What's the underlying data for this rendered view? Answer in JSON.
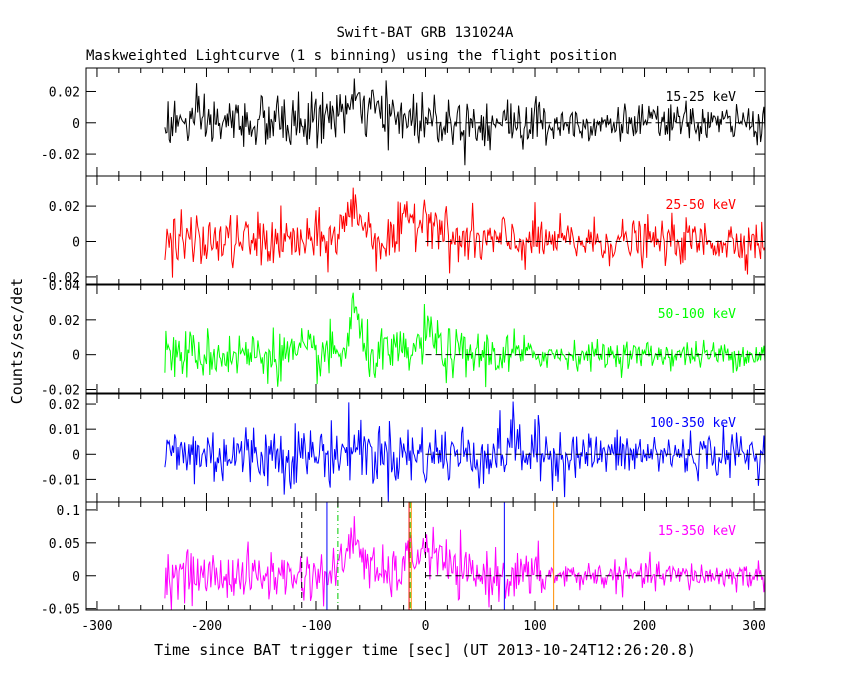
{
  "chart_data": {
    "type": "line",
    "title": "Swift-BAT GRB 131024A",
    "subtitle": "Maskweighted Lightcurve (1 s binning) using the flight position",
    "xlabel": "Time since BAT trigger time [sec] (UT 2013-10-24T12:26:20.8)",
    "ylabel": "Counts/sec/det",
    "xlim": [
      -310,
      310
    ],
    "x_ticks": [
      "-300",
      "-200",
      "-100",
      "0",
      "100",
      "200",
      "300"
    ],
    "x_tick_values": [
      -300,
      -200,
      -100,
      0,
      100,
      200,
      300
    ],
    "x_range_data": [
      -238,
      310
    ],
    "panels": [
      {
        "band": "15-25 keV",
        "color": "#000000",
        "ylim": [
          -0.034,
          0.035
        ],
        "y_ticks": [
          "0.02",
          "0",
          "-0.02"
        ],
        "y_tick_values": [
          0.02,
          0,
          -0.02
        ],
        "noise_sigma": 0.0085,
        "pulses": [
          [
            -65,
            0.01,
            18
          ],
          [
            -10,
            0.003,
            25
          ]
        ],
        "flat_after": 120,
        "flat_noise": 0.006
      },
      {
        "band": "25-50 keV",
        "color": "#ff0000",
        "ylim": [
          -0.024,
          0.037
        ],
        "y_ticks": [
          "0.02",
          "0",
          "-0.02"
        ],
        "y_tick_values": [
          0.02,
          0,
          -0.02
        ],
        "noise_sigma": 0.0075,
        "pulses": [
          [
            -65,
            0.018,
            9
          ],
          [
            -14,
            0.012,
            6
          ],
          [
            4,
            0.016,
            8
          ]
        ],
        "flat_after": 100,
        "flat_noise": 0.0062
      },
      {
        "band": "50-100 keV",
        "color": "#00ff00",
        "ylim": [
          -0.022,
          0.04
        ],
        "y_ticks": [
          "0.04",
          "0.02",
          "0",
          "-0.02"
        ],
        "y_tick_values": [
          0.04,
          0.02,
          0,
          -0.02
        ],
        "noise_sigma": 0.0072,
        "pulses": [
          [
            -65,
            0.027,
            4
          ],
          [
            3,
            0.012,
            7
          ]
        ],
        "flat_after": 90,
        "flat_noise": 0.004
      },
      {
        "band": "100-350 keV",
        "color": "#0000ff",
        "ylim": [
          -0.019,
          0.024
        ],
        "y_ticks": [
          "0.02",
          "0.01",
          "0",
          "-0.01"
        ],
        "y_tick_values": [
          0.02,
          0.01,
          0,
          -0.01
        ],
        "noise_sigma": 0.0063,
        "pulses": [
          [
            -65,
            0.004,
            6
          ],
          [
            80,
            0.006,
            5
          ]
        ],
        "flat_after": 130,
        "flat_noise": 0.0045
      },
      {
        "band": "15-350 keV",
        "color": "#ff00ff",
        "ylim": [
          -0.052,
          0.112
        ],
        "y_ticks": [
          "0.1",
          "0.05",
          "0",
          "-0.05"
        ],
        "y_tick_values": [
          0.1,
          0.05,
          0,
          -0.05
        ],
        "noise_sigma": 0.019,
        "pulses": [
          [
            -65,
            0.055,
            8
          ],
          [
            4,
            0.035,
            12
          ],
          [
            -12,
            0.015,
            8
          ]
        ],
        "flat_after": 110,
        "flat_noise": 0.011,
        "markers": [
          {
            "x": -113,
            "color": "#000000",
            "style": "dashed"
          },
          {
            "x": -90,
            "color": "#0000ff",
            "style": "solid"
          },
          {
            "x": -80,
            "color": "#00c800",
            "style": "dashdot"
          },
          {
            "x": -15,
            "color": "#ff0000",
            "style": "solid"
          },
          {
            "x": -14,
            "color": "#00c800",
            "style": "dashed"
          },
          {
            "x": -13,
            "color": "#ff8c00",
            "style": "solid"
          },
          {
            "x": 0,
            "color": "#000000",
            "style": "dashed"
          },
          {
            "x": 72,
            "color": "#0000ff",
            "style": "solid"
          },
          {
            "x": 117,
            "color": "#ff8c00",
            "style": "solid"
          }
        ]
      }
    ],
    "grid": false,
    "zero_line": "dashed"
  }
}
